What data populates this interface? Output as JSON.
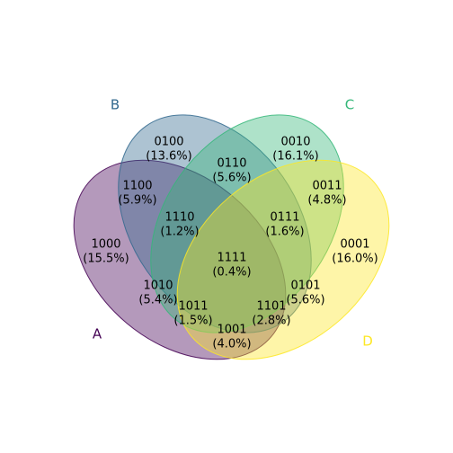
{
  "chart_data": {
    "type": "venn",
    "sets": [
      {
        "name": "A",
        "fill": "#440154",
        "label_color": "#440154"
      },
      {
        "name": "B",
        "fill": "#31688e",
        "label_color": "#31688e"
      },
      {
        "name": "C",
        "fill": "#35b779",
        "label_color": "#35b779"
      },
      {
        "name": "D",
        "fill": "#fde725",
        "label_color": "#fde725"
      }
    ],
    "regions": [
      {
        "code": "1000",
        "percent": "(15.5%)"
      },
      {
        "code": "0100",
        "percent": "(13.6%)"
      },
      {
        "code": "0010",
        "percent": "(16.1%)"
      },
      {
        "code": "0001",
        "percent": "(16.0%)"
      },
      {
        "code": "1100",
        "percent": "(5.9%)"
      },
      {
        "code": "0110",
        "percent": "(5.6%)"
      },
      {
        "code": "0011",
        "percent": "(4.8%)"
      },
      {
        "code": "1110",
        "percent": "(1.2%)"
      },
      {
        "code": "0111",
        "percent": "(1.6%)"
      },
      {
        "code": "1111",
        "percent": "(0.4%)"
      },
      {
        "code": "1010",
        "percent": "(5.4%)"
      },
      {
        "code": "0101",
        "percent": "(5.6%)"
      },
      {
        "code": "1011",
        "percent": "(1.5%)"
      },
      {
        "code": "1101",
        "percent": "(2.8%)"
      },
      {
        "code": "1001",
        "percent": "(4.0%)"
      }
    ]
  }
}
